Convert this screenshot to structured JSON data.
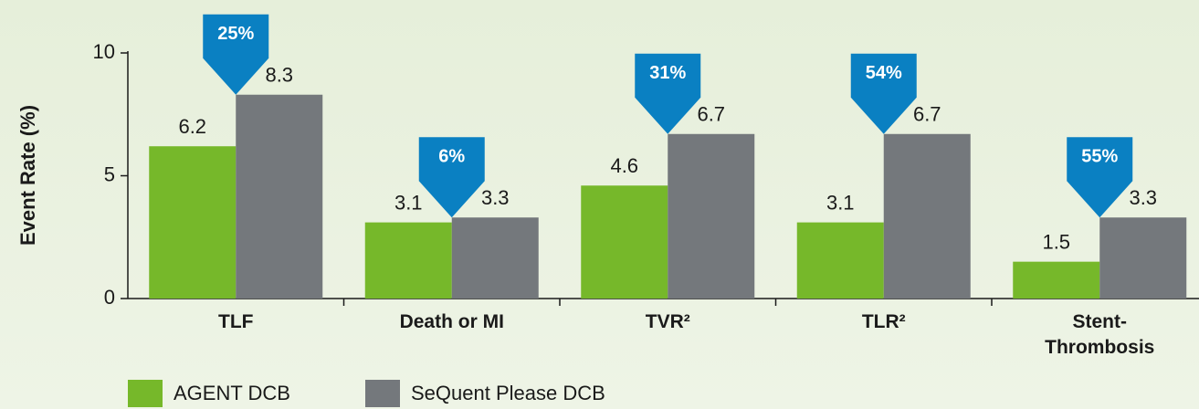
{
  "chart_data": {
    "type": "bar",
    "y_axis_label": "Event Rate (%)",
    "categories": [
      "TLF",
      "Death or MI",
      "TVR²",
      "TLR²",
      "Stent-Thrombosis"
    ],
    "series": [
      {
        "name": "AGENT DCB",
        "color": "#76b82a",
        "values": [
          6.2,
          3.1,
          4.6,
          3.1,
          1.5
        ]
      },
      {
        "name": "SeQuent Please DCB",
        "color": "#74787c",
        "values": [
          8.3,
          3.3,
          6.7,
          6.7,
          3.3
        ]
      }
    ],
    "annotations": [
      "25%",
      "6%",
      "31%",
      "54%",
      "55%"
    ],
    "annotation_color": "#0a80c2",
    "ylim": [
      0,
      10
    ],
    "yticks": [
      0,
      5,
      10
    ],
    "grid": false
  }
}
